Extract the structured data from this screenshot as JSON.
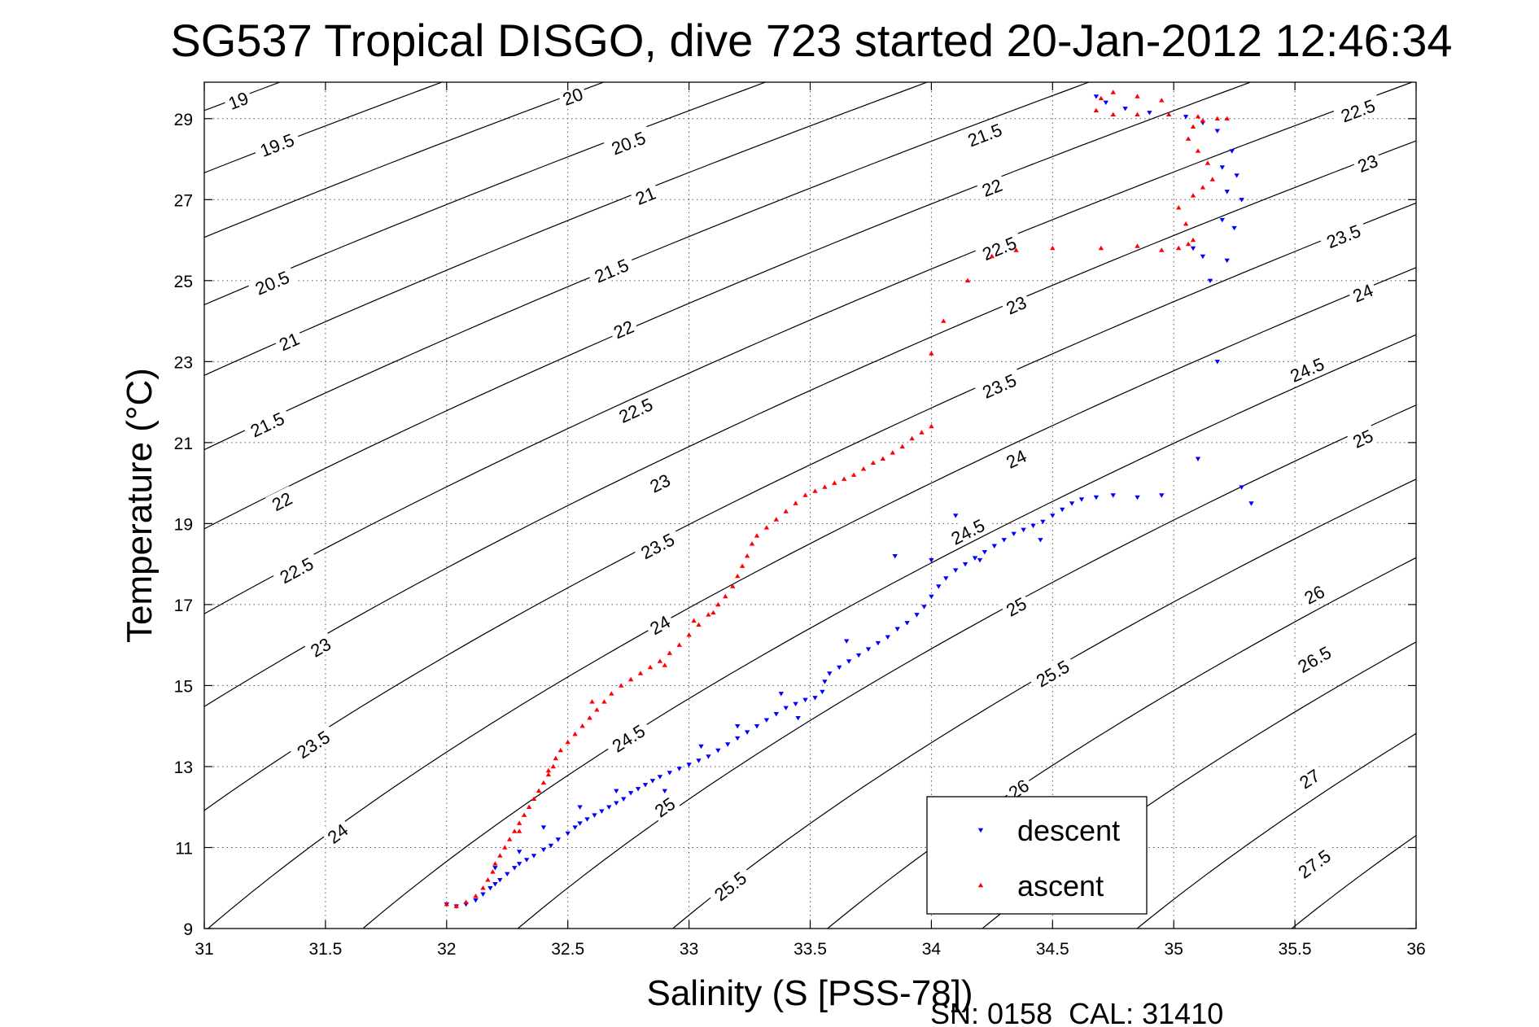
{
  "chart_data": {
    "type": "scatter",
    "title": "SG537 Tropical DISGO, dive 723 started 20-Jan-2012 12:46:34",
    "xlabel": "Salinity (S [PSS-78])",
    "ylabel": "Temperature (°C)",
    "xlim": [
      31,
      36
    ],
    "ylim": [
      9,
      29.9
    ],
    "xticks": [
      "31",
      "31.5",
      "32",
      "32.5",
      "33",
      "33.5",
      "34",
      "34.5",
      "35",
      "35.5",
      "36"
    ],
    "yticks": [
      "9",
      "11",
      "13",
      "15",
      "17",
      "19",
      "21",
      "23",
      "25",
      "27",
      "29"
    ],
    "grid": true,
    "legend_position": "bottom-right",
    "footer": "SN: 0158  CAL: 31410",
    "density_contours": {
      "levels": [
        19,
        19.5,
        20,
        20.5,
        21,
        21.5,
        22,
        22.5,
        23,
        23.5,
        24,
        24.5,
        25,
        25.5,
        26,
        26.5,
        27,
        27.5
      ],
      "labels": [
        {
          "text": "19",
          "s": 31.14,
          "t": 29.45
        },
        {
          "text": "20",
          "s": 32.52,
          "t": 29.55
        },
        {
          "text": "19.5",
          "s": 31.3,
          "t": 28.35
        },
        {
          "text": "20.5",
          "s": 32.75,
          "t": 28.4
        },
        {
          "text": "21.5",
          "s": 34.22,
          "t": 28.6
        },
        {
          "text": "22.5",
          "s": 35.76,
          "t": 29.2
        },
        {
          "text": "21",
          "s": 32.82,
          "t": 27.1
        },
        {
          "text": "22",
          "s": 34.25,
          "t": 27.3
        },
        {
          "text": "23",
          "s": 35.8,
          "t": 27.9
        },
        {
          "text": "20.5",
          "s": 31.28,
          "t": 24.95
        },
        {
          "text": "21.5",
          "s": 32.68,
          "t": 25.25
        },
        {
          "text": "22.5",
          "s": 34.28,
          "t": 25.8
        },
        {
          "text": "23.5",
          "s": 35.7,
          "t": 26.1
        },
        {
          "text": "21",
          "s": 31.35,
          "t": 23.5
        },
        {
          "text": "22",
          "s": 32.73,
          "t": 23.8
        },
        {
          "text": "23",
          "s": 34.35,
          "t": 24.4
        },
        {
          "text": "24",
          "s": 35.78,
          "t": 24.7
        },
        {
          "text": "21.5",
          "s": 31.26,
          "t": 21.45
        },
        {
          "text": "22.5",
          "s": 32.78,
          "t": 21.8
        },
        {
          "text": "23.5",
          "s": 34.28,
          "t": 22.4
        },
        {
          "text": "24.5",
          "s": 35.55,
          "t": 22.8
        },
        {
          "text": "22",
          "s": 31.32,
          "t": 19.55
        },
        {
          "text": "23",
          "s": 32.88,
          "t": 20.0
        },
        {
          "text": "24",
          "s": 34.35,
          "t": 20.6
        },
        {
          "text": "25",
          "s": 35.78,
          "t": 21.1
        },
        {
          "text": "22.5",
          "s": 31.38,
          "t": 17.85
        },
        {
          "text": "23.5",
          "s": 32.87,
          "t": 18.45
        },
        {
          "text": "24.5",
          "s": 34.15,
          "t": 18.8
        },
        {
          "text": "26",
          "s": 35.58,
          "t": 17.25
        },
        {
          "text": "23",
          "s": 31.48,
          "t": 15.95
        },
        {
          "text": "24",
          "s": 32.88,
          "t": 16.5
        },
        {
          "text": "25",
          "s": 34.35,
          "t": 16.95
        },
        {
          "text": "26.5",
          "s": 35.58,
          "t": 15.65
        },
        {
          "text": "23.5",
          "s": 31.45,
          "t": 13.55
        },
        {
          "text": "24.5",
          "s": 32.75,
          "t": 13.7
        },
        {
          "text": "25.5",
          "s": 34.5,
          "t": 15.3
        },
        {
          "text": "26",
          "s": 34.36,
          "t": 12.45
        },
        {
          "text": "27",
          "s": 35.56,
          "t": 12.7
        },
        {
          "text": "24",
          "s": 31.55,
          "t": 11.35
        },
        {
          "text": "25",
          "s": 32.9,
          "t": 12.0
        },
        {
          "text": "25.5",
          "s": 33.17,
          "t": 10.05
        },
        {
          "text": "27.5",
          "s": 35.58,
          "t": 10.6
        }
      ]
    },
    "series": [
      {
        "name": "descent",
        "color": "#0000ff",
        "marker": "triangle-down",
        "points": [
          [
            32.0,
            9.6
          ],
          [
            32.04,
            9.55
          ],
          [
            32.08,
            9.6
          ],
          [
            32.12,
            9.7
          ],
          [
            32.15,
            9.85
          ],
          [
            32.18,
            10.0
          ],
          [
            32.2,
            10.1
          ],
          [
            32.22,
            10.2
          ],
          [
            32.25,
            10.35
          ],
          [
            32.28,
            10.5
          ],
          [
            32.3,
            10.6
          ],
          [
            32.33,
            10.7
          ],
          [
            32.36,
            10.8
          ],
          [
            32.4,
            10.95
          ],
          [
            32.43,
            11.05
          ],
          [
            32.46,
            11.2
          ],
          [
            32.5,
            11.35
          ],
          [
            32.53,
            11.5
          ],
          [
            32.55,
            11.6
          ],
          [
            32.58,
            11.7
          ],
          [
            32.61,
            11.8
          ],
          [
            32.64,
            11.9
          ],
          [
            32.67,
            12.0
          ],
          [
            32.7,
            12.1
          ],
          [
            32.73,
            12.2
          ],
          [
            32.76,
            12.35
          ],
          [
            32.79,
            12.45
          ],
          [
            32.82,
            12.55
          ],
          [
            32.85,
            12.65
          ],
          [
            32.88,
            12.75
          ],
          [
            32.92,
            12.85
          ],
          [
            32.96,
            12.95
          ],
          [
            33.0,
            13.05
          ],
          [
            33.04,
            13.15
          ],
          [
            33.08,
            13.25
          ],
          [
            33.12,
            13.4
          ],
          [
            33.16,
            13.55
          ],
          [
            33.2,
            13.7
          ],
          [
            33.24,
            13.85
          ],
          [
            33.28,
            14.0
          ],
          [
            33.32,
            14.15
          ],
          [
            33.36,
            14.3
          ],
          [
            33.4,
            14.45
          ],
          [
            33.44,
            14.55
          ],
          [
            33.48,
            14.65
          ],
          [
            33.52,
            14.7
          ],
          [
            33.55,
            14.85
          ],
          [
            33.56,
            15.1
          ],
          [
            33.58,
            15.3
          ],
          [
            33.62,
            15.45
          ],
          [
            33.66,
            15.6
          ],
          [
            33.7,
            15.75
          ],
          [
            33.74,
            15.9
          ],
          [
            33.78,
            16.05
          ],
          [
            33.82,
            16.2
          ],
          [
            33.86,
            16.4
          ],
          [
            33.9,
            16.55
          ],
          [
            33.94,
            16.75
          ],
          [
            33.97,
            16.95
          ],
          [
            34.0,
            17.2
          ],
          [
            34.03,
            17.45
          ],
          [
            34.06,
            17.65
          ],
          [
            34.1,
            17.85
          ],
          [
            34.14,
            18.0
          ],
          [
            34.18,
            18.15
          ],
          [
            34.22,
            18.3
          ],
          [
            34.26,
            18.45
          ],
          [
            34.3,
            18.6
          ],
          [
            34.34,
            18.75
          ],
          [
            34.38,
            18.85
          ],
          [
            34.42,
            18.95
          ],
          [
            34.46,
            19.05
          ],
          [
            34.5,
            19.2
          ],
          [
            34.54,
            19.35
          ],
          [
            34.58,
            19.5
          ],
          [
            34.62,
            19.6
          ],
          [
            34.68,
            19.65
          ],
          [
            34.75,
            19.7
          ],
          [
            34.85,
            19.65
          ],
          [
            34.95,
            19.7
          ],
          [
            33.45,
            14.2
          ],
          [
            33.38,
            14.8
          ],
          [
            33.2,
            14.0
          ],
          [
            33.05,
            13.5
          ],
          [
            32.9,
            12.4
          ],
          [
            32.7,
            12.4
          ],
          [
            32.55,
            12.0
          ],
          [
            32.4,
            11.5
          ],
          [
            32.3,
            10.9
          ],
          [
            32.2,
            10.5
          ],
          [
            33.85,
            18.2
          ],
          [
            34.1,
            19.2
          ],
          [
            34.2,
            18.1
          ],
          [
            34.0,
            18.1
          ],
          [
            33.65,
            16.1
          ],
          [
            34.45,
            18.6
          ],
          [
            35.32,
            19.5
          ],
          [
            35.28,
            19.9
          ],
          [
            35.1,
            20.6
          ],
          [
            35.18,
            23.0
          ],
          [
            35.15,
            25.0
          ],
          [
            35.12,
            25.6
          ],
          [
            35.08,
            25.8
          ],
          [
            35.22,
            25.5
          ],
          [
            35.25,
            26.3
          ],
          [
            35.2,
            26.5
          ],
          [
            35.28,
            27.0
          ],
          [
            35.22,
            27.2
          ],
          [
            35.26,
            27.6
          ],
          [
            35.2,
            27.8
          ],
          [
            35.24,
            28.2
          ],
          [
            35.18,
            28.7
          ],
          [
            35.12,
            28.9
          ],
          [
            35.05,
            29.05
          ],
          [
            34.9,
            29.15
          ],
          [
            34.8,
            29.25
          ],
          [
            34.72,
            29.4
          ],
          [
            34.68,
            29.55
          ]
        ]
      },
      {
        "name": "ascent",
        "color": "#ff0000",
        "marker": "triangle-up",
        "points": [
          [
            32.0,
            9.6
          ],
          [
            32.04,
            9.55
          ],
          [
            32.08,
            9.65
          ],
          [
            32.12,
            9.8
          ],
          [
            32.15,
            10.0
          ],
          [
            32.17,
            10.2
          ],
          [
            32.19,
            10.4
          ],
          [
            32.2,
            10.6
          ],
          [
            32.22,
            10.8
          ],
          [
            32.24,
            11.0
          ],
          [
            32.26,
            11.2
          ],
          [
            32.28,
            11.4
          ],
          [
            32.3,
            11.6
          ],
          [
            32.32,
            11.8
          ],
          [
            32.34,
            12.0
          ],
          [
            32.36,
            12.2
          ],
          [
            32.38,
            12.4
          ],
          [
            32.4,
            12.6
          ],
          [
            32.42,
            12.8
          ],
          [
            32.44,
            13.0
          ],
          [
            32.45,
            13.2
          ],
          [
            32.47,
            13.4
          ],
          [
            32.5,
            13.6
          ],
          [
            32.53,
            13.8
          ],
          [
            32.56,
            14.0
          ],
          [
            32.59,
            14.2
          ],
          [
            32.62,
            14.4
          ],
          [
            32.65,
            14.6
          ],
          [
            32.68,
            14.8
          ],
          [
            32.72,
            15.0
          ],
          [
            32.76,
            15.15
          ],
          [
            32.8,
            15.3
          ],
          [
            32.84,
            15.45
          ],
          [
            32.88,
            15.6
          ],
          [
            32.92,
            15.8
          ],
          [
            32.96,
            16.0
          ],
          [
            33.0,
            16.25
          ],
          [
            33.04,
            16.5
          ],
          [
            33.08,
            16.75
          ],
          [
            33.12,
            17.0
          ],
          [
            33.15,
            17.2
          ],
          [
            33.18,
            17.45
          ],
          [
            33.2,
            17.7
          ],
          [
            33.22,
            17.95
          ],
          [
            33.24,
            18.2
          ],
          [
            33.26,
            18.5
          ],
          [
            33.28,
            18.7
          ],
          [
            33.32,
            18.9
          ],
          [
            33.36,
            19.1
          ],
          [
            33.4,
            19.3
          ],
          [
            33.44,
            19.5
          ],
          [
            33.48,
            19.7
          ],
          [
            33.52,
            19.8
          ],
          [
            33.56,
            19.9
          ],
          [
            33.6,
            20.0
          ],
          [
            33.64,
            20.1
          ],
          [
            33.68,
            20.2
          ],
          [
            33.72,
            20.35
          ],
          [
            33.76,
            20.5
          ],
          [
            33.8,
            20.6
          ],
          [
            33.84,
            20.75
          ],
          [
            33.88,
            20.9
          ],
          [
            33.92,
            21.1
          ],
          [
            33.96,
            21.25
          ],
          [
            34.0,
            21.4
          ],
          [
            34.0,
            23.2
          ],
          [
            34.05,
            24.0
          ],
          [
            34.15,
            25.0
          ],
          [
            34.25,
            25.6
          ],
          [
            34.35,
            25.75
          ],
          [
            34.5,
            25.8
          ],
          [
            34.7,
            25.8
          ],
          [
            34.85,
            25.85
          ],
          [
            34.95,
            25.75
          ],
          [
            35.02,
            25.8
          ],
          [
            35.06,
            25.9
          ],
          [
            35.08,
            26.0
          ],
          [
            35.05,
            26.4
          ],
          [
            35.02,
            26.8
          ],
          [
            35.08,
            27.1
          ],
          [
            35.12,
            27.3
          ],
          [
            35.16,
            27.5
          ],
          [
            35.14,
            27.9
          ],
          [
            35.1,
            28.2
          ],
          [
            35.06,
            28.5
          ],
          [
            35.08,
            28.8
          ],
          [
            35.12,
            28.95
          ],
          [
            35.18,
            29.0
          ],
          [
            35.22,
            29.0
          ],
          [
            35.1,
            29.05
          ],
          [
            34.98,
            29.1
          ],
          [
            34.85,
            29.1
          ],
          [
            34.75,
            29.1
          ],
          [
            34.68,
            29.2
          ],
          [
            34.7,
            29.5
          ],
          [
            34.75,
            29.65
          ],
          [
            34.85,
            29.55
          ],
          [
            34.95,
            29.45
          ],
          [
            32.3,
            11.4
          ],
          [
            32.42,
            12.9
          ],
          [
            32.6,
            14.6
          ],
          [
            32.9,
            15.5
          ],
          [
            33.02,
            16.6
          ],
          [
            33.1,
            16.8
          ]
        ]
      }
    ]
  }
}
